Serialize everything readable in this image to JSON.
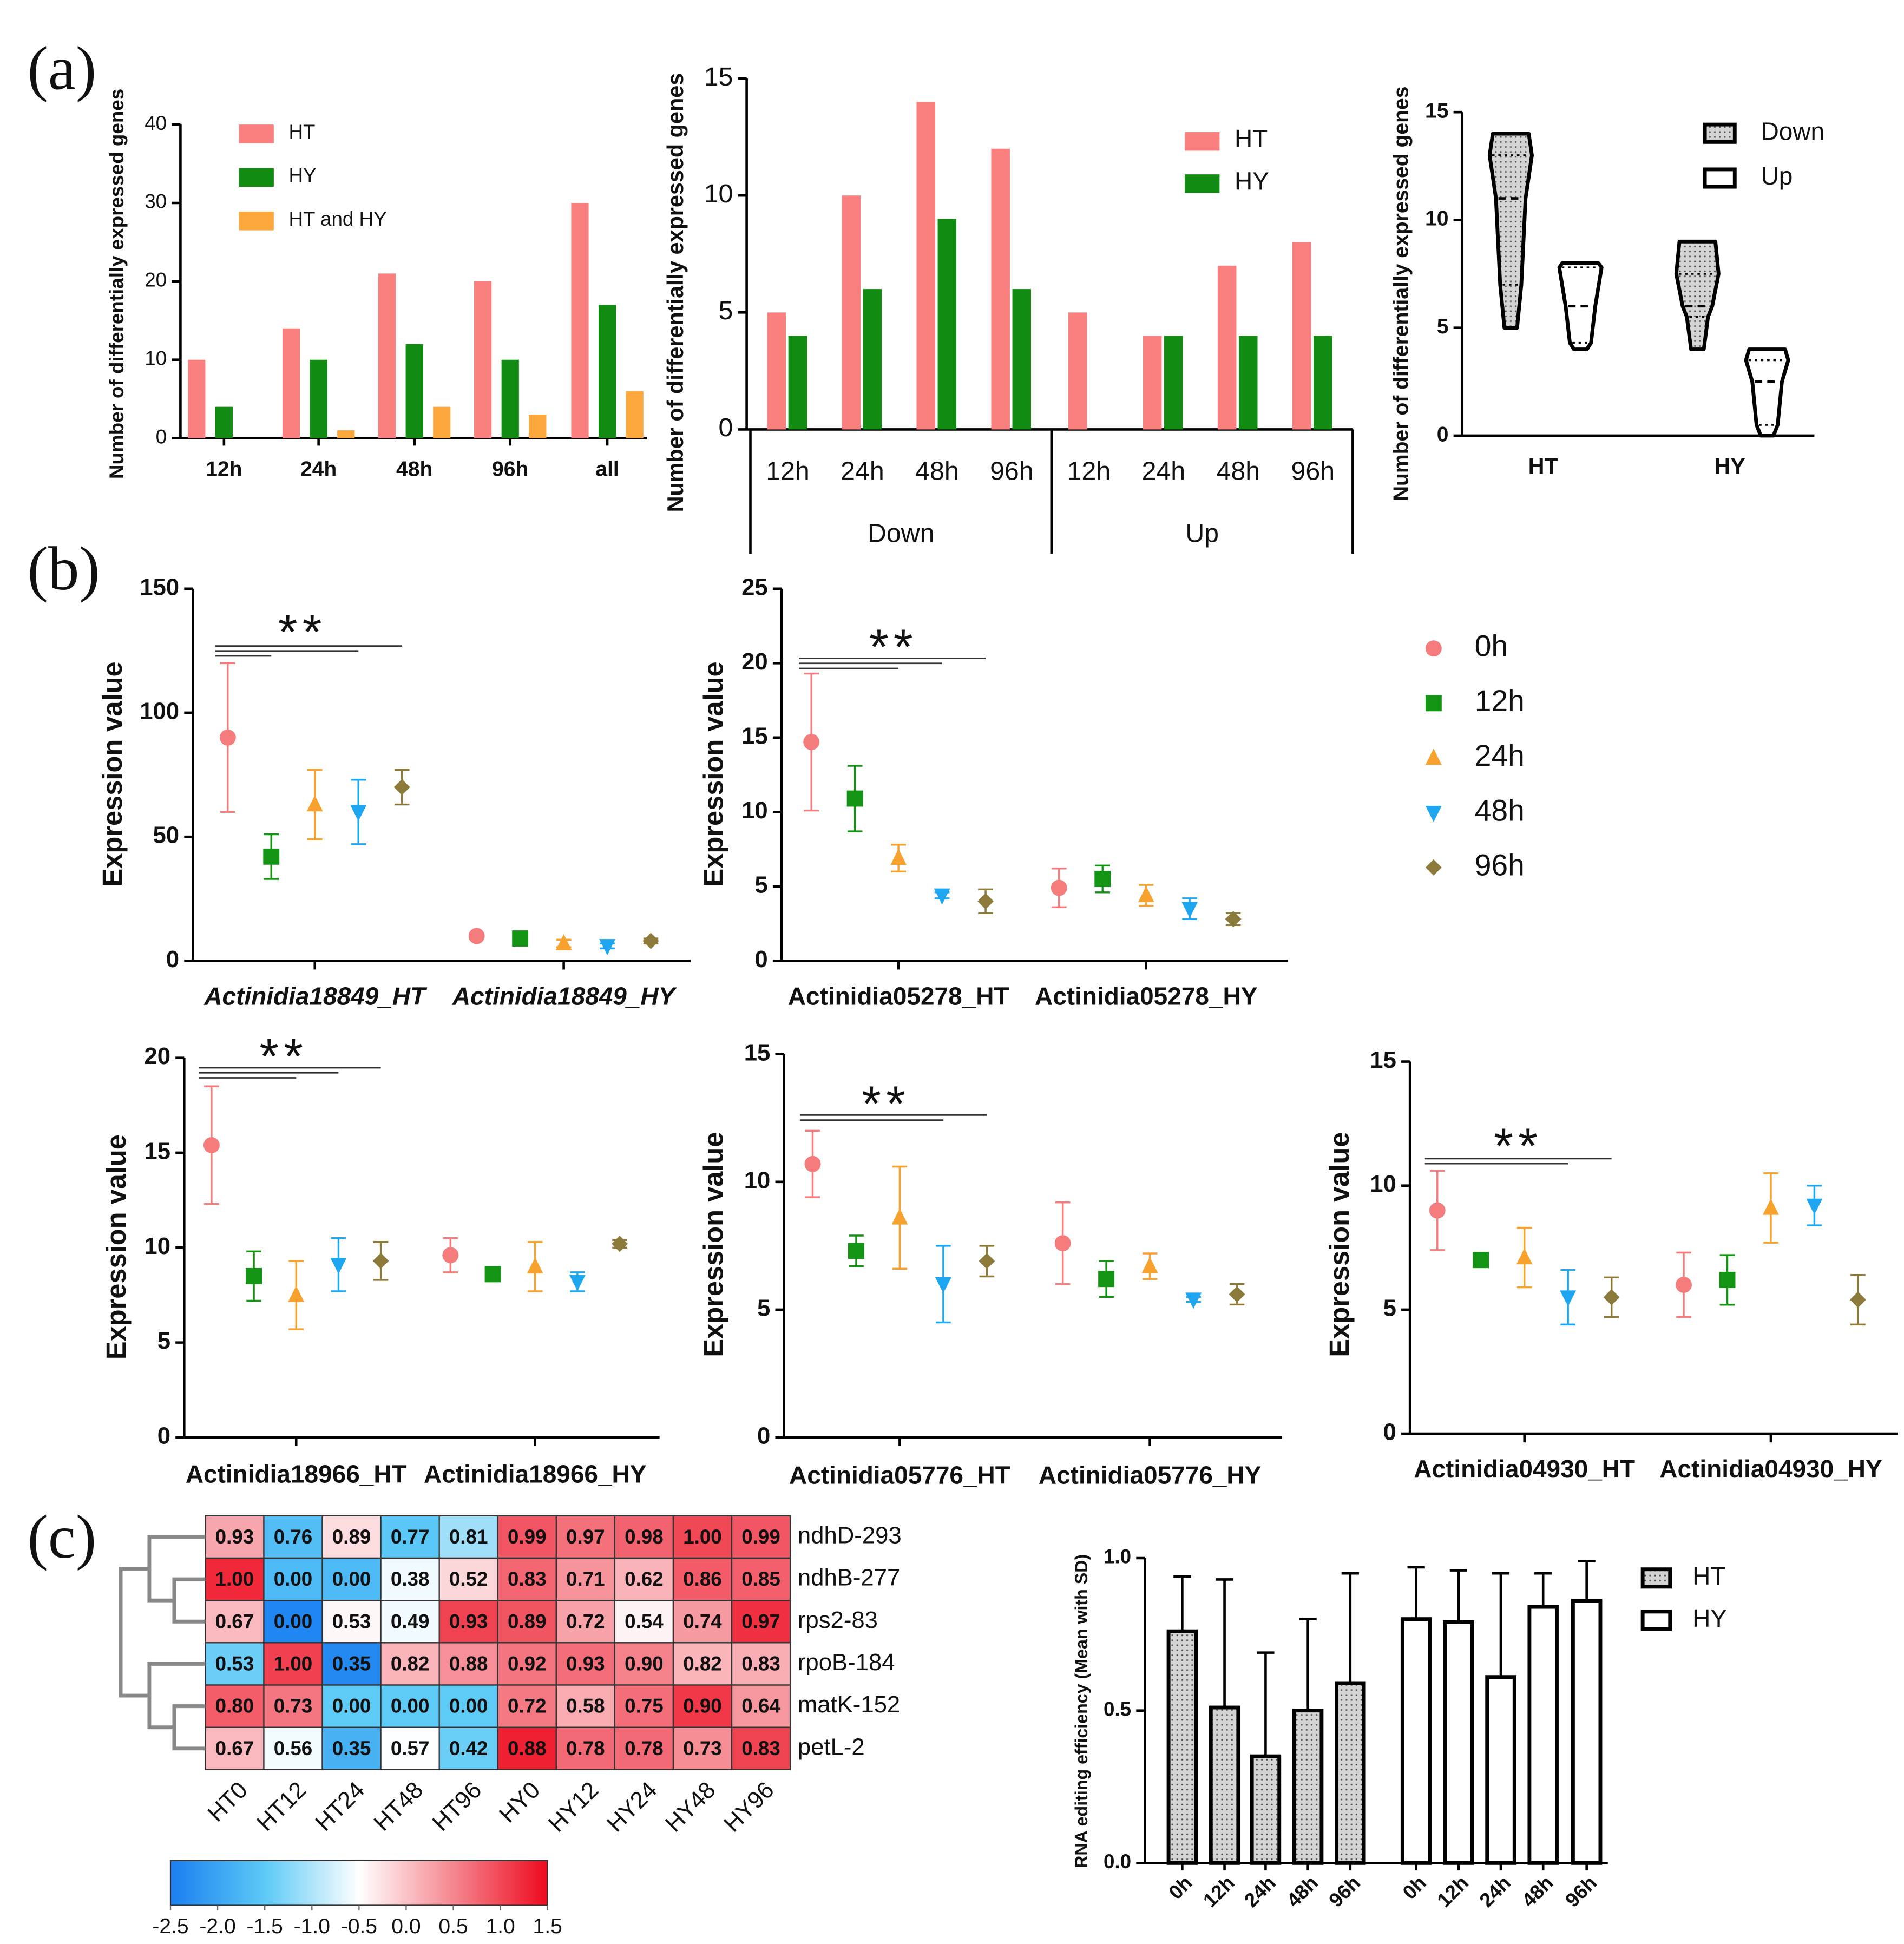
{
  "panels": [
    "(a)",
    "(b)",
    "(c)"
  ],
  "legend": {
    "names": [
      "0h",
      "12h",
      "24h",
      "48h",
      "96h"
    ],
    "colors": [
      "#f47c7c",
      "#149414",
      "#f7a12e",
      "#1ea7f0",
      "#8b7a3a"
    ],
    "markers": [
      "circle",
      "square",
      "triangle",
      "triangle-down",
      "diamond"
    ]
  },
  "chart_data": [
    {
      "type": "bar",
      "ylabel": "Number of differentially expressed genes",
      "categories": [
        "12h",
        "24h",
        "48h",
        "96h",
        "all"
      ],
      "series": [
        {
          "name": "HT",
          "color": "#fa8080",
          "values": [
            10,
            14,
            21,
            20,
            30
          ]
        },
        {
          "name": "HY",
          "color": "#118b11",
          "values": [
            4,
            10,
            12,
            10,
            17
          ]
        },
        {
          "name": "HT and HY",
          "color": "#fca73c",
          "values": [
            0,
            1,
            4,
            3,
            6
          ]
        }
      ],
      "ylim": [
        0,
        40
      ],
      "yticks": [
        0,
        10,
        20,
        30,
        40
      ]
    },
    {
      "type": "bar",
      "ylabel": "Number of differentially expressed genes",
      "categories": [
        "12h",
        "24h",
        "48h",
        "96h",
        "12h",
        "24h",
        "48h",
        "96h"
      ],
      "groups": [
        "Down",
        "Up"
      ],
      "series": [
        {
          "name": "HT",
          "color": "#fa8080",
          "values": [
            5,
            10,
            14,
            12,
            5,
            4,
            7,
            8
          ]
        },
        {
          "name": "HY",
          "color": "#118b11",
          "values": [
            4,
            6,
            9,
            6,
            0,
            4,
            4,
            4
          ]
        }
      ],
      "ylim": [
        0,
        15
      ],
      "yticks": [
        0,
        5,
        10,
        15
      ]
    },
    {
      "type": "violin",
      "ylabel": "Number of differentially expressed genes",
      "categories": [
        "HT",
        "HY"
      ],
      "series": [
        {
          "name": "Down",
          "color": "#d9d9d9",
          "pattern": "dots",
          "min": [
            5,
            4
          ],
          "q1": [
            7,
            5.5
          ],
          "median": [
            11,
            6
          ],
          "q3": [
            13,
            7.5
          ],
          "max": [
            14,
            9
          ]
        },
        {
          "name": "Up",
          "color": "#ffffff",
          "min": [
            4,
            0
          ],
          "q1": [
            4.3,
            0.5
          ],
          "median": [
            6,
            2.5
          ],
          "q3": [
            7.8,
            3.5
          ],
          "max": [
            8,
            4
          ]
        }
      ],
      "ylim": [
        0,
        15
      ],
      "yticks": [
        0,
        5,
        10,
        15
      ]
    },
    {
      "type": "dot",
      "ylabel": "Expression value",
      "categories": [
        "Actinidia18849_HT",
        "Actinidia18849_HY"
      ],
      "annotation": "**",
      "significance": [
        1,
        3,
        4
      ],
      "series": [
        {
          "values": [
            90,
            10
          ],
          "errors": [
            30,
            1
          ]
        },
        {
          "values": [
            42,
            9
          ],
          "errors": [
            9,
            1
          ]
        },
        {
          "values": [
            63,
            7
          ],
          "errors": [
            14,
            1.5
          ]
        },
        {
          "values": [
            60,
            6
          ],
          "errors": [
            13,
            1
          ]
        },
        {
          "values": [
            70,
            8
          ],
          "errors": [
            7,
            1
          ]
        }
      ],
      "ylim": [
        0,
        150
      ],
      "yticks": [
        0,
        50,
        100,
        150
      ]
    },
    {
      "type": "dot",
      "ylabel": "Expression value",
      "categories": [
        "Actinidia05278_HT",
        "Actinidia05278_HY"
      ],
      "annotation": "**",
      "significance": [
        2,
        3,
        4
      ],
      "series": [
        {
          "values": [
            14.7,
            4.9
          ],
          "errors": [
            4.6,
            1.3
          ]
        },
        {
          "values": [
            10.9,
            5.5
          ],
          "errors": [
            2.2,
            0.9
          ]
        },
        {
          "values": [
            6.9,
            4.4
          ],
          "errors": [
            0.9,
            0.7
          ]
        },
        {
          "values": [
            4.4,
            3.5
          ],
          "errors": [
            0.2,
            0.7
          ]
        },
        {
          "values": [
            4.0,
            2.8
          ],
          "errors": [
            0.8,
            0.4
          ]
        }
      ],
      "ylim": [
        0,
        25
      ],
      "yticks": [
        0,
        5,
        10,
        15,
        20,
        25
      ]
    },
    {
      "type": "dot",
      "ylabel": "Expression value",
      "categories": [
        "Actinidia18966_HT",
        "Actinidia18966_HY"
      ],
      "annotation": "**",
      "significance": [
        2,
        3,
        4
      ],
      "series": [
        {
          "values": [
            15.4,
            9.6
          ],
          "errors": [
            3.1,
            0.9
          ]
        },
        {
          "values": [
            8.5,
            8.6
          ],
          "errors": [
            1.3,
            0.2
          ]
        },
        {
          "values": [
            7.5,
            9.0
          ],
          "errors": [
            1.8,
            1.3
          ]
        },
        {
          "values": [
            9.1,
            8.2
          ],
          "errors": [
            1.4,
            0.5
          ]
        },
        {
          "values": [
            9.3,
            10.2
          ],
          "errors": [
            1.0,
            0.2
          ]
        }
      ],
      "ylim": [
        0,
        20
      ],
      "yticks": [
        0,
        5,
        10,
        15,
        20
      ]
    },
    {
      "type": "dot",
      "ylabel": "Expression value",
      "categories": [
        "Actinidia05776_HT",
        "Actinidia05776_HY"
      ],
      "annotation": "**",
      "significance": [
        3,
        4
      ],
      "series": [
        {
          "values": [
            10.7,
            7.6
          ],
          "errors": [
            1.3,
            1.6
          ]
        },
        {
          "values": [
            7.3,
            6.2
          ],
          "errors": [
            0.6,
            0.7
          ]
        },
        {
          "values": [
            8.6,
            6.7
          ],
          "errors": [
            2.0,
            0.5
          ]
        },
        {
          "values": [
            6.0,
            5.4
          ],
          "errors": [
            1.5,
            0.1
          ]
        },
        {
          "values": [
            6.9,
            5.6
          ],
          "errors": [
            0.6,
            0.4
          ]
        }
      ],
      "ylim": [
        0,
        15
      ],
      "yticks": [
        0,
        5,
        10,
        15
      ]
    },
    {
      "type": "dot",
      "ylabel": "Expression value",
      "categories": [
        "Actinidia04930_HT",
        "Actinidia04930_HY"
      ],
      "annotation": "**",
      "significance": [
        3,
        4
      ],
      "series": [
        {
          "values": [
            9.0,
            6.0
          ],
          "errors": [
            1.6,
            1.3
          ]
        },
        {
          "values": [
            7.0,
            6.2
          ],
          "errors": [
            0.2,
            1.0
          ]
        },
        {
          "values": [
            7.1,
            9.1
          ],
          "errors": [
            1.2,
            1.4
          ]
        },
        {
          "values": [
            5.5,
            9.2
          ],
          "errors": [
            1.1,
            0.8
          ]
        },
        {
          "values": [
            5.5,
            5.4
          ],
          "errors": [
            0.8,
            1.0
          ]
        }
      ],
      "ylim": [
        0,
        15
      ],
      "yticks": [
        0,
        5,
        10,
        15
      ]
    },
    {
      "type": "heatmap",
      "rows": [
        "ndhD-293",
        "ndhB-277",
        "rps2-83",
        "rpoB-184",
        "matK-152",
        "petL-2"
      ],
      "columns": [
        "HT0",
        "HT12",
        "HT24",
        "HT48",
        "HT96",
        "HY0",
        "HY12",
        "HY24",
        "HY48",
        "HY96"
      ],
      "values": [
        [
          0.93,
          0.76,
          0.89,
          0.77,
          0.81,
          0.99,
          0.97,
          0.98,
          1.0,
          0.99
        ],
        [
          1.0,
          0.0,
          0.0,
          0.38,
          0.52,
          0.83,
          0.71,
          0.62,
          0.86,
          0.85
        ],
        [
          0.67,
          0.0,
          0.53,
          0.49,
          0.93,
          0.89,
          0.72,
          0.54,
          0.74,
          0.97
        ],
        [
          0.53,
          1.0,
          0.35,
          0.82,
          0.88,
          0.92,
          0.93,
          0.9,
          0.82,
          0.83
        ],
        [
          0.8,
          0.73,
          0.0,
          0.0,
          0.0,
          0.72,
          0.58,
          0.75,
          0.9,
          0.64
        ],
        [
          0.67,
          0.56,
          0.35,
          0.57,
          0.42,
          0.88,
          0.78,
          0.78,
          0.73,
          0.83
        ]
      ],
      "value_labels": [
        [
          "0.93",
          "0.76",
          "0.89",
          "0.77",
          "0.81",
          "0.99",
          "0.97",
          "0.98",
          "1.00",
          "0.99"
        ],
        [
          "1.00",
          "0.00",
          "0.00",
          "0.38",
          "0.52",
          "0.83",
          "0.71",
          "0.62",
          "0.86",
          "0.85"
        ],
        [
          "0.67",
          "0.00",
          "0.53",
          "0.49",
          "0.93",
          "0.89",
          "0.72",
          "0.54",
          "0.74",
          "0.97"
        ],
        [
          "0.53",
          "1.00",
          "0.35",
          "0.82",
          "0.88",
          "0.92",
          "0.93",
          "0.90",
          "0.82",
          "0.83"
        ],
        [
          "0.80",
          "0.73",
          "0.00",
          "0.00",
          "0.00",
          "0.72",
          "0.58",
          "0.75",
          "0.90",
          "0.64"
        ],
        [
          "0.67",
          "0.56",
          "0.35",
          "0.57",
          "0.42",
          "0.88",
          "0.78",
          "0.78",
          "0.73",
          "0.83"
        ]
      ],
      "colorbar": {
        "lim": [
          -2.5,
          1.5
        ],
        "ticks": [
          -2.5,
          {
            "value": -2,
            "label": "-2.0"
          },
          -1.5,
          {
            "value": -1,
            "label": "-1.0"
          },
          -0.5,
          {
            "value": 0,
            "label": "0.0"
          },
          0.5,
          {
            "value": 1,
            "label": "1.0"
          },
          1.5
        ],
        "colors": [
          "#1a7ff0",
          "#5cc9f6",
          "#ffffff",
          "#f5868f",
          "#ee0a1e"
        ]
      }
    },
    {
      "type": "bar",
      "ylabel": "RNA editing efficiency (Mean with SD)",
      "categories": [
        "0h",
        "12h",
        "24h",
        "48h",
        "96h"
      ],
      "series": [
        {
          "name": "HT",
          "color": "#d9d9d9",
          "pattern": "dots",
          "values": [
            0.76,
            0.51,
            0.35,
            0.5,
            0.59
          ],
          "errors": [
            0.18,
            0.42,
            0.34,
            0.3,
            0.36
          ]
        },
        {
          "name": "HY",
          "color": "#ffffff",
          "values": [
            0.8,
            0.79,
            0.61,
            0.84,
            0.86
          ],
          "errors": [
            0.17,
            0.17,
            0.34,
            0.11,
            0.13
          ]
        }
      ],
      "ylim": [
        0,
        1
      ],
      "yticks": [
        {
          "value": 0,
          "label": "0.0"
        },
        0.5,
        {
          "value": 1,
          "label": "1.0"
        }
      ]
    }
  ]
}
